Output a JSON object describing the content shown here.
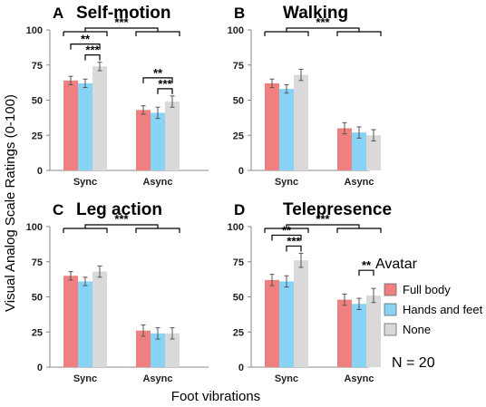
{
  "figure": {
    "ylabel": "Visual Analog Scale Ratings (0-100)",
    "xlabel": "Foot vibrations",
    "legend_title": "Avatar",
    "n_label": "N = 20",
    "colors": {
      "Full body": "#f08080",
      "Hands and feet": "#87d3f5",
      "None": "#d9d9d9"
    }
  },
  "chart_data": [
    {
      "type": "bar",
      "letter": "A",
      "title": "Self-motion",
      "categories": [
        "Sync",
        "Async"
      ],
      "ylim": [
        0,
        100
      ],
      "yticks": [
        0,
        25,
        50,
        75,
        100
      ],
      "series": [
        {
          "name": "Full body",
          "values": [
            64,
            43
          ],
          "errors": [
            3,
            3
          ]
        },
        {
          "name": "Hands and feet",
          "values": [
            62,
            41
          ],
          "errors": [
            3,
            4
          ]
        },
        {
          "name": "None",
          "values": [
            74,
            49
          ],
          "errors": [
            3,
            4
          ]
        }
      ],
      "significance": [
        {
          "label": "***",
          "between": "Sync vs Async"
        },
        {
          "label": "**",
          "group": "Sync",
          "pair": [
            "Full body",
            "None"
          ]
        },
        {
          "label": "***",
          "group": "Sync",
          "pair": [
            "Hands and feet",
            "None"
          ]
        },
        {
          "label": "**",
          "group": "Async",
          "pair": [
            "Full body",
            "None"
          ]
        },
        {
          "label": "***",
          "group": "Async",
          "pair": [
            "Hands and feet",
            "None"
          ]
        }
      ]
    },
    {
      "type": "bar",
      "letter": "B",
      "title": "Walking",
      "categories": [
        "Sync",
        "Async"
      ],
      "ylim": [
        0,
        100
      ],
      "yticks": [
        0,
        25,
        50,
        75,
        100
      ],
      "series": [
        {
          "name": "Full body",
          "values": [
            62,
            30
          ],
          "errors": [
            3,
            4
          ]
        },
        {
          "name": "Hands and feet",
          "values": [
            58,
            27
          ],
          "errors": [
            3,
            4
          ]
        },
        {
          "name": "None",
          "values": [
            68,
            25
          ],
          "errors": [
            4,
            4
          ]
        }
      ],
      "significance": [
        {
          "label": "***",
          "between": "Sync vs Async"
        }
      ]
    },
    {
      "type": "bar",
      "letter": "C",
      "title": "Leg action",
      "categories": [
        "Sync",
        "Async"
      ],
      "ylim": [
        0,
        100
      ],
      "yticks": [
        0,
        25,
        50,
        75,
        100
      ],
      "series": [
        {
          "name": "Full body",
          "values": [
            65,
            26
          ],
          "errors": [
            3,
            4
          ]
        },
        {
          "name": "Hands and feet",
          "values": [
            61,
            24
          ],
          "errors": [
            3,
            4
          ]
        },
        {
          "name": "None",
          "values": [
            68,
            24
          ],
          "errors": [
            4,
            4
          ]
        }
      ],
      "significance": [
        {
          "label": "***",
          "between": "Sync vs Async"
        }
      ]
    },
    {
      "type": "bar",
      "letter": "D",
      "title": "Telepresence",
      "categories": [
        "Sync",
        "Async"
      ],
      "ylim": [
        0,
        100
      ],
      "yticks": [
        0,
        25,
        50,
        75,
        100
      ],
      "series": [
        {
          "name": "Full body",
          "values": [
            62,
            48
          ],
          "errors": [
            4,
            4
          ]
        },
        {
          "name": "Hands and feet",
          "values": [
            61,
            45
          ],
          "errors": [
            4,
            4
          ]
        },
        {
          "name": "None",
          "values": [
            76,
            51
          ],
          "errors": [
            5,
            5
          ]
        }
      ],
      "significance": [
        {
          "label": "***",
          "between": "Sync vs Async"
        },
        {
          "label": "**",
          "group": "Sync",
          "pair": [
            "Full body",
            "None"
          ]
        },
        {
          "label": "***",
          "group": "Sync",
          "pair": [
            "Hands and feet",
            "None"
          ]
        },
        {
          "label": "**",
          "group": "Async",
          "pair": [
            "Hands and feet",
            "None"
          ]
        }
      ]
    }
  ]
}
